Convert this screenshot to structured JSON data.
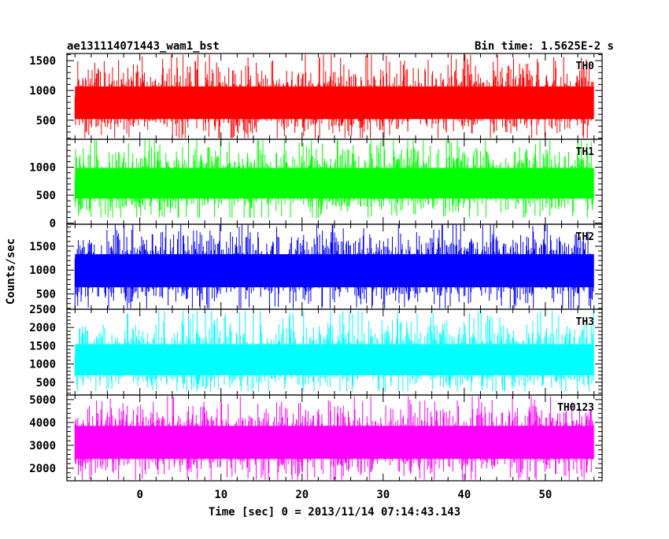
{
  "header": {
    "title": "ae131114071443_wam1_bst",
    "bin_time": "Bin time: 1.5625E-2 s"
  },
  "chart_data": {
    "type": "line",
    "title": "ae131114071443_wam1_bst",
    "xlabel": "Time [sec] 0 = 2013/11/14 07:14:43.143",
    "ylabel": "Counts/sec",
    "xlim": [
      -9,
      57
    ],
    "data_x_range": [
      -8,
      56
    ],
    "bin_time_s": 0.015625,
    "x_ticks": [
      0,
      10,
      20,
      30,
      40,
      50
    ],
    "x_tick_labels": [
      "0",
      "10",
      "20",
      "30",
      "40",
      "50"
    ],
    "panels": [
      {
        "name": "TH0",
        "color": "#ff0000",
        "ylim": [
          180,
          1620
        ],
        "y_ticks": [
          500,
          1000,
          1500
        ],
        "y_tick_labels": [
          "500",
          "1000",
          "1500"
        ],
        "mean": 780,
        "min": 200,
        "max": 1600
      },
      {
        "name": "TH1",
        "color": "#00ff00",
        "ylim": [
          -20,
          1500
        ],
        "y_ticks": [
          0,
          500,
          1000
        ],
        "y_tick_labels": [
          "0",
          "500",
          "1000"
        ],
        "mean": 720,
        "min": 100,
        "max": 1480
      },
      {
        "name": "TH2",
        "color": "#0000ff",
        "ylim": [
          180,
          1960
        ],
        "y_ticks": [
          500,
          1000,
          1500
        ],
        "y_tick_labels": [
          "500",
          "1000",
          "1500"
        ],
        "mean": 1000,
        "min": 200,
        "max": 1950
      },
      {
        "name": "TH3",
        "color": "#00ffff",
        "ylim": [
          150,
          2500
        ],
        "y_ticks": [
          500,
          1000,
          1500,
          2000,
          2500
        ],
        "y_tick_labels": [
          "500",
          "1000",
          "1500",
          "2000",
          "2500"
        ],
        "mean": 1050,
        "min": 250,
        "max": 2450
      },
      {
        "name": "TH0123",
        "color": "#ff00ff",
        "ylim": [
          1450,
          5200
        ],
        "y_ticks": [
          2000,
          3000,
          4000,
          5000
        ],
        "y_tick_labels": [
          "2000",
          "3000",
          "4000",
          "5000"
        ],
        "mean": 3150,
        "min": 1500,
        "max": 5150
      }
    ]
  }
}
